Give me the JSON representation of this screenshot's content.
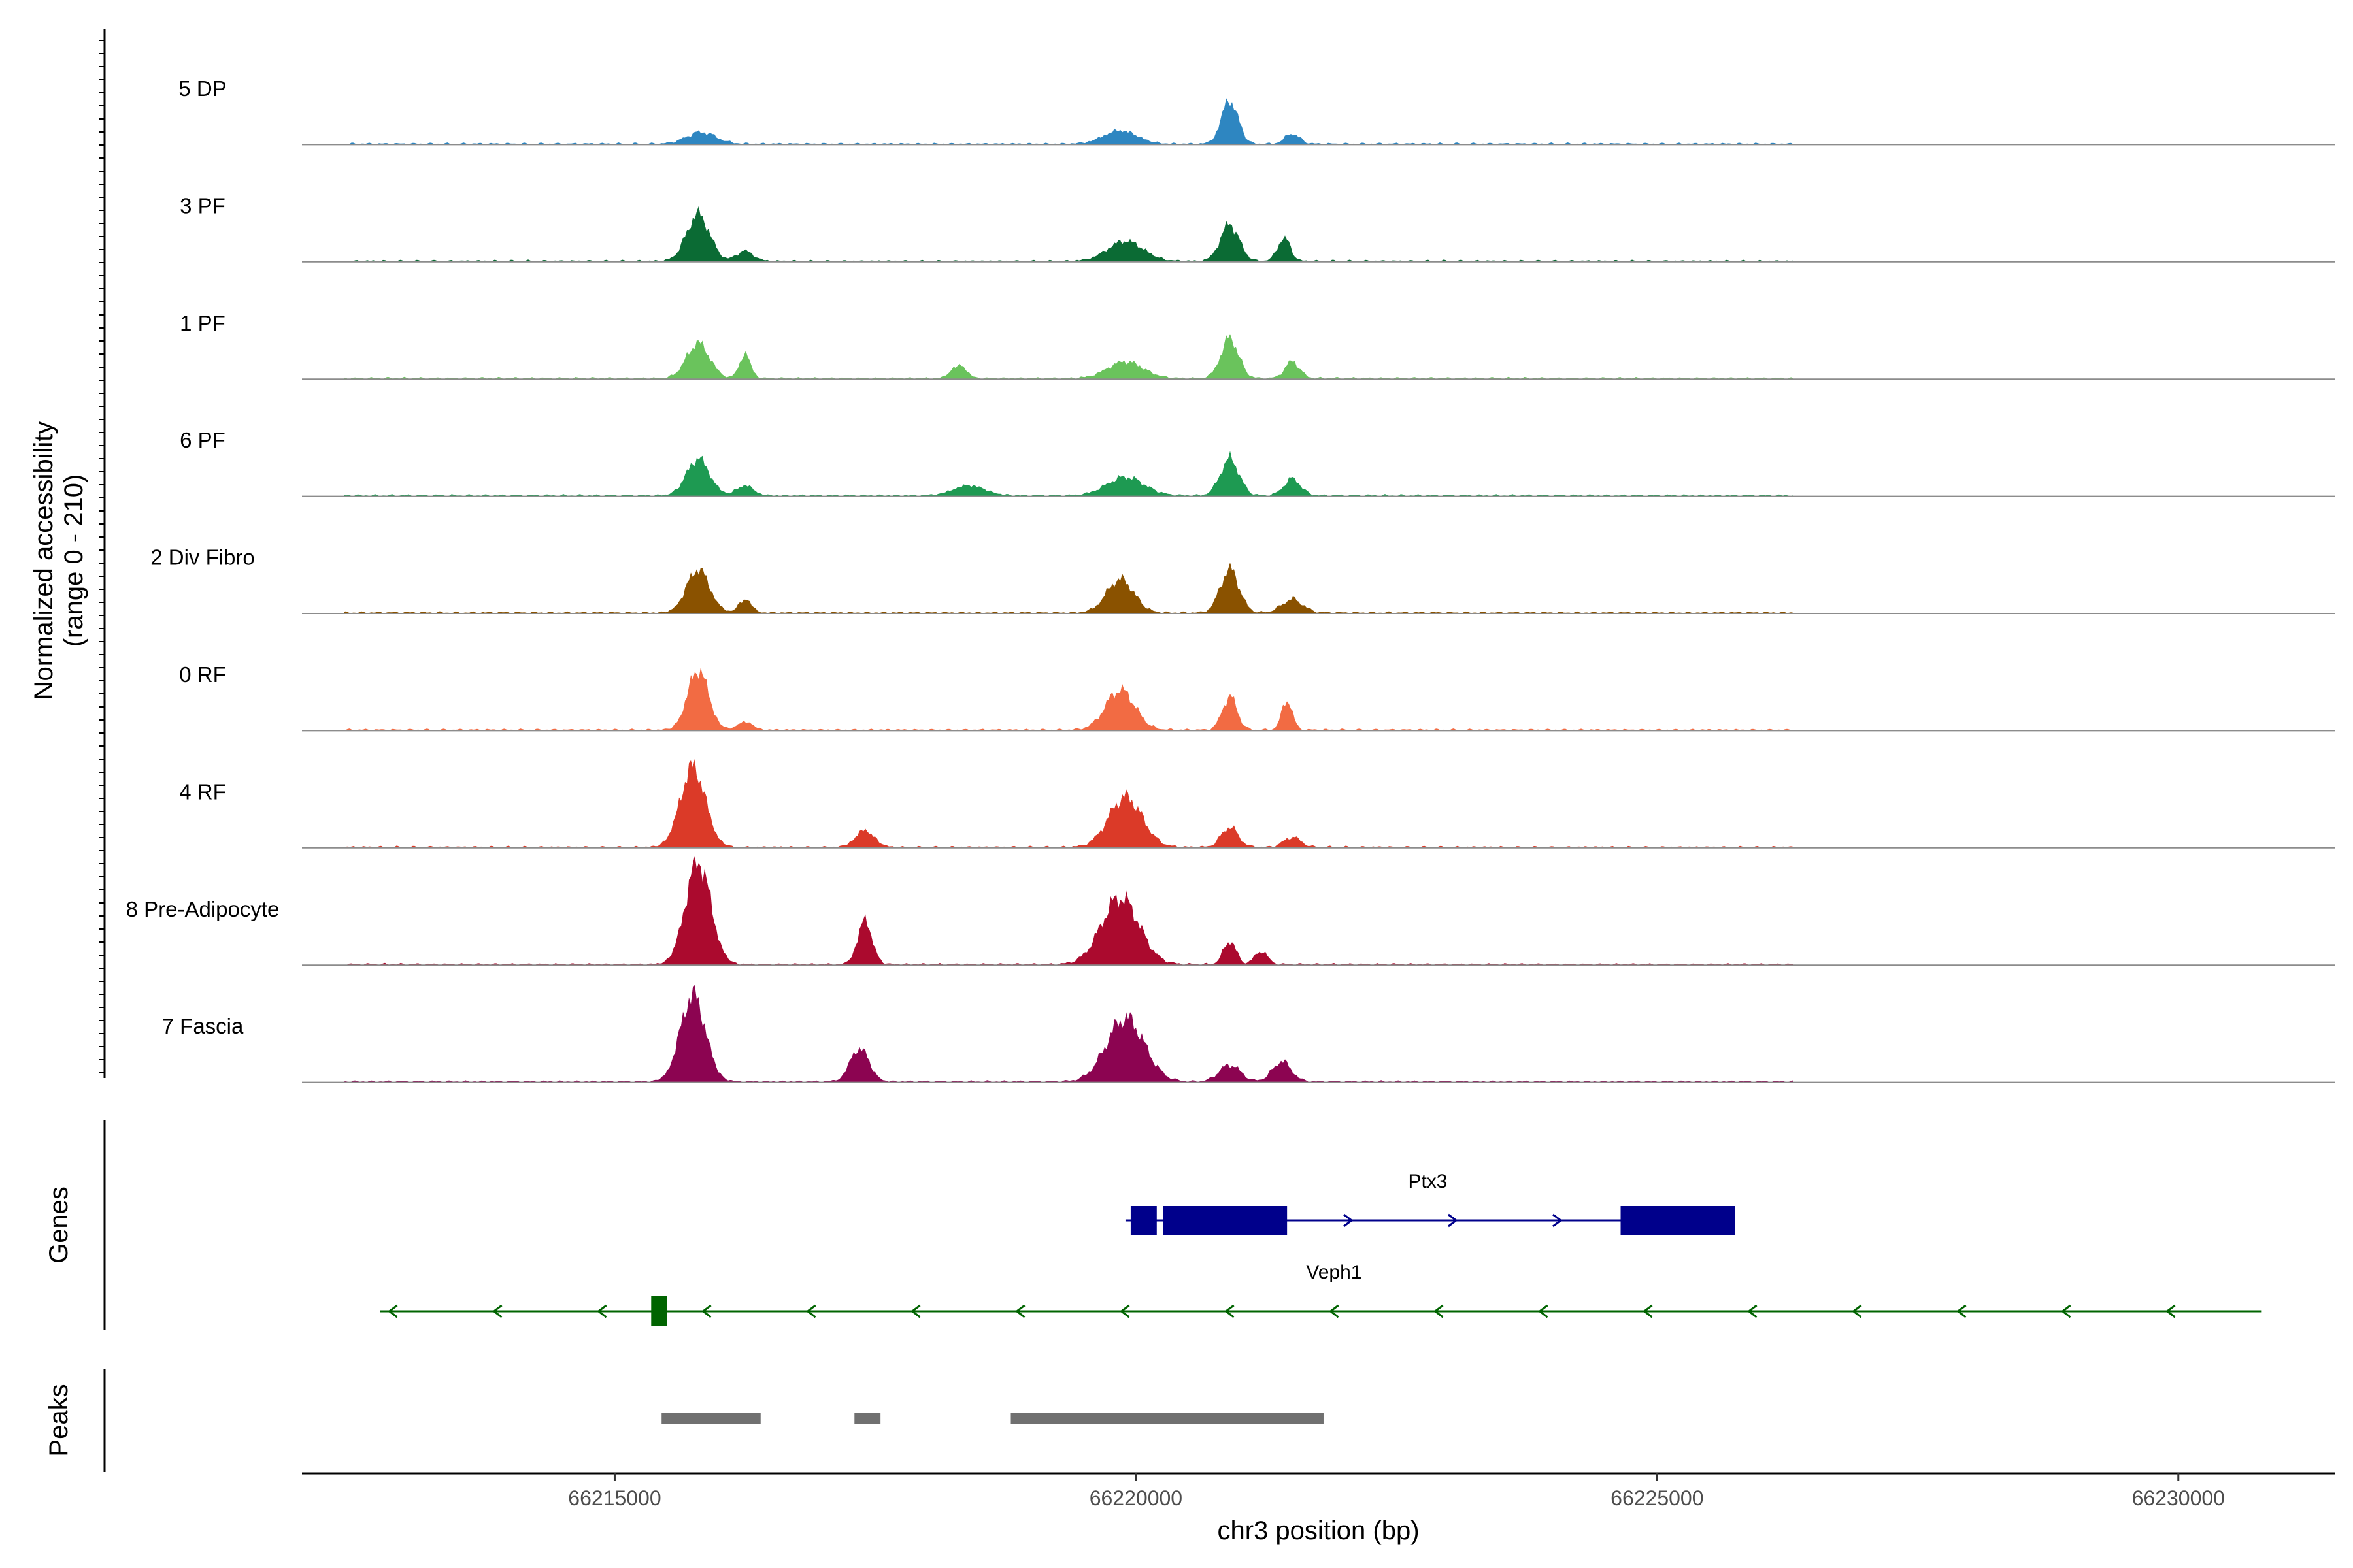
{
  "chart_data": {
    "type": "area",
    "title": "",
    "coverage_ylabel_line1": "Normalized accessibility",
    "coverage_ylabel_line2": "(range 0 - 210)",
    "ylim": [
      0,
      210
    ],
    "xlabel": "chr3 position (bp)",
    "xlim": [
      66212000,
      66231500
    ],
    "xticks": [
      66215000,
      66220000,
      66225000,
      66230000
    ],
    "xtick_labels": [
      "66215000",
      "66220000",
      "66225000",
      "66230000"
    ],
    "coverage_extent": [
      66212400,
      66226300
    ],
    "tracks": [
      {
        "name": "5 DP",
        "color": "#2e86c1",
        "peaks": [
          [
            66215830,
            35,
            140
          ],
          [
            66219850,
            40,
            160
          ],
          [
            66220900,
            130,
            80
          ],
          [
            66221500,
            30,
            70
          ]
        ]
      },
      {
        "name": "3 PF",
        "color": "#0b6b34",
        "peaks": [
          [
            66215800,
            140,
            110
          ],
          [
            66216250,
            30,
            80
          ],
          [
            66219900,
            60,
            170
          ],
          [
            66220900,
            110,
            90
          ],
          [
            66221420,
            70,
            60
          ]
        ]
      },
      {
        "name": "1 PF",
        "color": "#6ac35c",
        "peaks": [
          [
            66215800,
            105,
            110
          ],
          [
            66216250,
            70,
            55
          ],
          [
            66218300,
            40,
            70
          ],
          [
            66219900,
            50,
            170
          ],
          [
            66220900,
            120,
            85
          ],
          [
            66221500,
            50,
            70
          ]
        ]
      },
      {
        "name": "6 PF",
        "color": "#1e9a52",
        "peaks": [
          [
            66215800,
            110,
            110
          ],
          [
            66216250,
            30,
            80
          ],
          [
            66218400,
            30,
            150
          ],
          [
            66219900,
            55,
            180
          ],
          [
            66220900,
            110,
            90
          ],
          [
            66221500,
            50,
            80
          ]
        ]
      },
      {
        "name": "2 Div Fibro",
        "color": "#8a5200",
        "peaks": [
          [
            66215800,
            130,
            110
          ],
          [
            66216250,
            40,
            60
          ],
          [
            66219850,
            100,
            130
          ],
          [
            66220900,
            130,
            90
          ],
          [
            66221500,
            40,
            100
          ]
        ]
      },
      {
        "name": "0 RF",
        "color": "#f26b43",
        "peaks": [
          [
            66215800,
            180,
            100
          ],
          [
            66216250,
            25,
            70
          ],
          [
            66219850,
            120,
            140
          ],
          [
            66220900,
            100,
            70
          ],
          [
            66221450,
            90,
            50
          ]
        ]
      },
      {
        "name": "4 RF",
        "color": "#db3a28",
        "peaks": [
          [
            66215750,
            240,
            120
          ],
          [
            66217400,
            50,
            90
          ],
          [
            66219900,
            150,
            160
          ],
          [
            66220900,
            60,
            80
          ],
          [
            66221500,
            30,
            80
          ]
        ]
      },
      {
        "name": "8 Pre-Adipocyte",
        "color": "#ab0a2e",
        "peaks": [
          [
            66215800,
            310,
            120
          ],
          [
            66217400,
            130,
            70
          ],
          [
            66219850,
            200,
            180
          ],
          [
            66220900,
            70,
            60
          ],
          [
            66221200,
            40,
            60
          ]
        ]
      },
      {
        "name": "7 Fascia",
        "color": "#8c0451",
        "peaks": [
          [
            66215750,
            260,
            120
          ],
          [
            66217350,
            100,
            90
          ],
          [
            66219900,
            190,
            180
          ],
          [
            66220900,
            50,
            100
          ],
          [
            66221400,
            60,
            90
          ]
        ]
      }
    ],
    "genes_label": "Genes",
    "genes": [
      {
        "name": "Ptx3",
        "strand": "+",
        "color": "#00008b",
        "start": 66219900,
        "end": 66225750,
        "exons": [
          [
            66219950,
            66220200
          ],
          [
            66220260,
            66221450
          ],
          [
            66224650,
            66225750
          ]
        ]
      },
      {
        "name": "Veph1",
        "strand": "-",
        "color": "#006400",
        "start": 66212750,
        "end": 66230800,
        "exons": [
          [
            66215350,
            66215500
          ]
        ]
      }
    ],
    "peaks_label": "Peaks",
    "peak_regions": [
      [
        66215450,
        66216400
      ],
      [
        66217300,
        66217550
      ],
      [
        66218800,
        66221800
      ]
    ],
    "peak_color": "#707070"
  }
}
